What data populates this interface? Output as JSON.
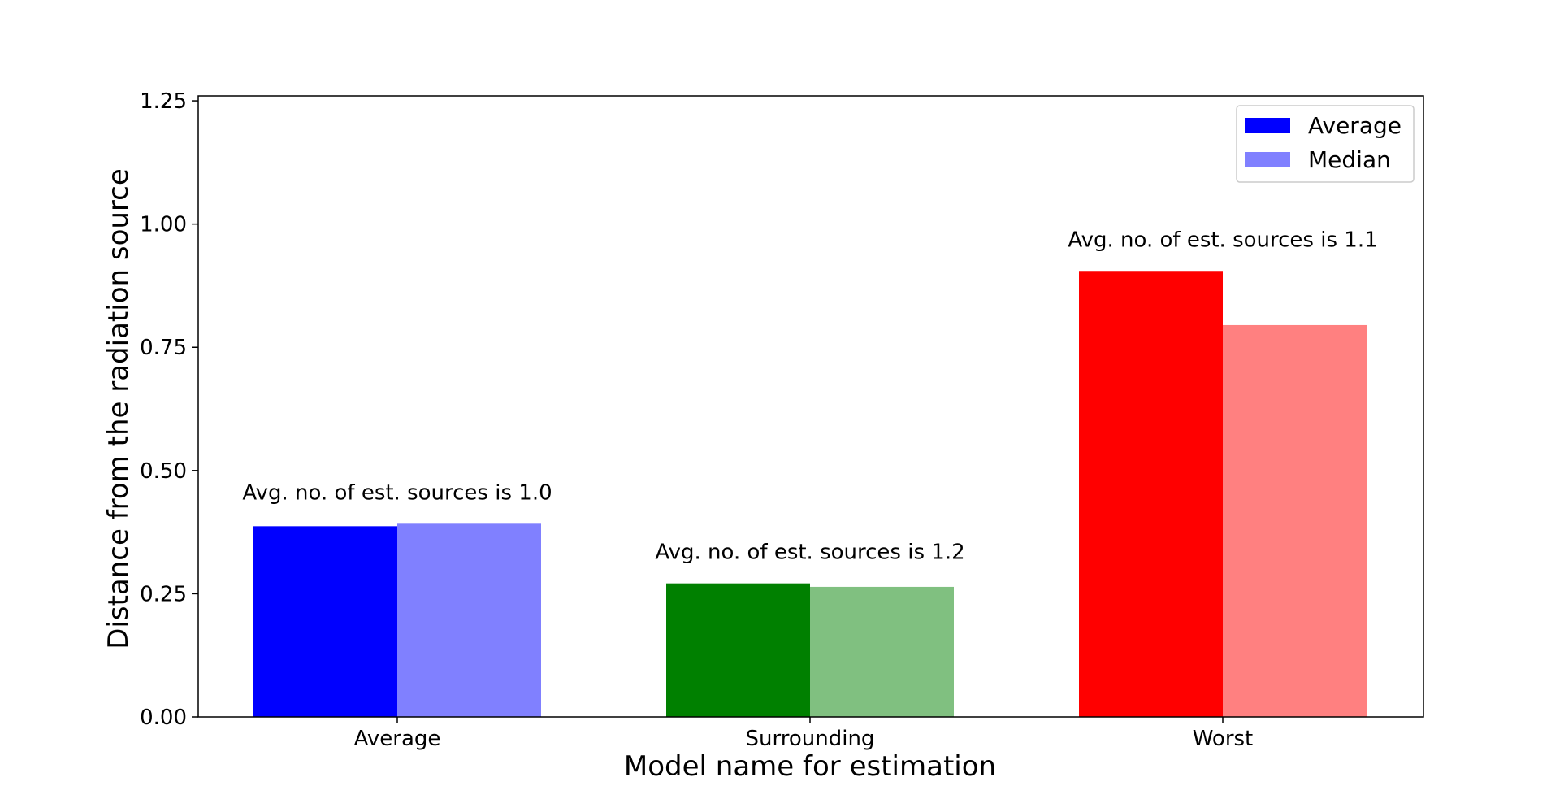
{
  "chart_data": {
    "type": "bar",
    "title": "",
    "xlabel": "Model name for estimation",
    "ylabel": "Distance from the radiation source",
    "categories": [
      "Average",
      "Surrounding",
      "Worst"
    ],
    "series": [
      {
        "name": "Average",
        "values": [
          0.387,
          0.271,
          0.905
        ],
        "colors": [
          "#0000ff",
          "#008000",
          "#ff0000"
        ]
      },
      {
        "name": "Median",
        "values": [
          0.392,
          0.264,
          0.795
        ],
        "colors": [
          "#8080ff",
          "#80c080",
          "#ff8080"
        ]
      }
    ],
    "annotations": [
      "Avg. no. of est. sources is 1.0",
      "Avg. no. of est. sources is 1.2",
      "Avg. no. of est. sources is 1.1"
    ],
    "ylim": [
      0,
      1.26
    ],
    "yticks": [
      "0.00",
      "0.25",
      "0.50",
      "0.75",
      "1.00",
      "1.25"
    ],
    "ytick_values": [
      0,
      0.25,
      0.5,
      0.75,
      1.0,
      1.25
    ],
    "grid": false,
    "legend": {
      "placement": "top-right",
      "entries": [
        "Average",
        "Median"
      ],
      "colors": [
        "#0000ff",
        "#8080ff"
      ]
    }
  }
}
